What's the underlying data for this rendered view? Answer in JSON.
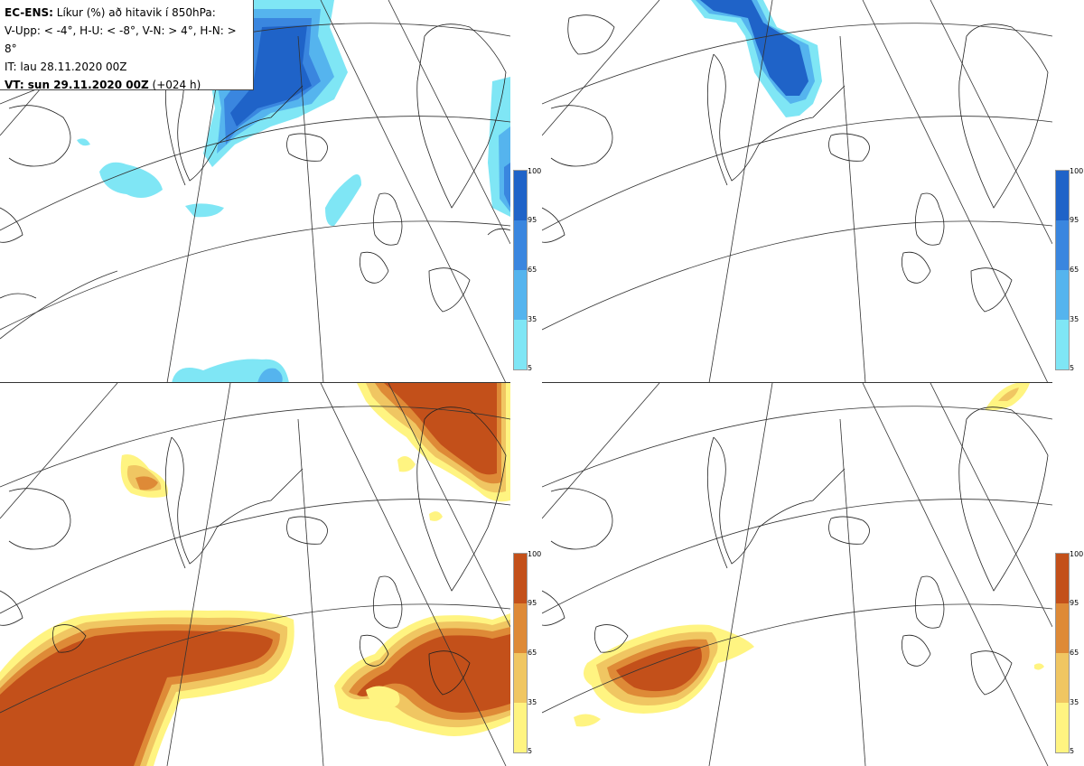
{
  "infobox": {
    "line1_bold": "EC-ENS:",
    "line1_rest": " Líkur (%) að hitavik í 850hPa:",
    "line2": "V-Upp: < -4°, H-U: < -8°, V-N: > 4°, H-N: > 8°",
    "line3": "IT: lau 28.11.2020 00Z",
    "line4_bold": "VT: sun 29.11.2020 00Z",
    "line4_rest": " (+024 h)"
  },
  "legend_ticks": [
    "100",
    "95",
    "65",
    "35",
    "5"
  ],
  "colors": {
    "cold_100": "#1f63c8",
    "cold_95": "#3a86df",
    "cold_65": "#55b4ee",
    "cold_35": "#7fe6f5",
    "warm_100": "#c3501a",
    "warm_95": "#de8a37",
    "warm_65": "#f0c662",
    "warm_35": "#fff481",
    "grid": "#333333",
    "coast": "#222222"
  },
  "panels": [
    {
      "id": "V-Upp",
      "type": "cold"
    },
    {
      "id": "H-U",
      "type": "cold"
    },
    {
      "id": "V-N",
      "type": "warm"
    },
    {
      "id": "H-N",
      "type": "warm"
    }
  ]
}
